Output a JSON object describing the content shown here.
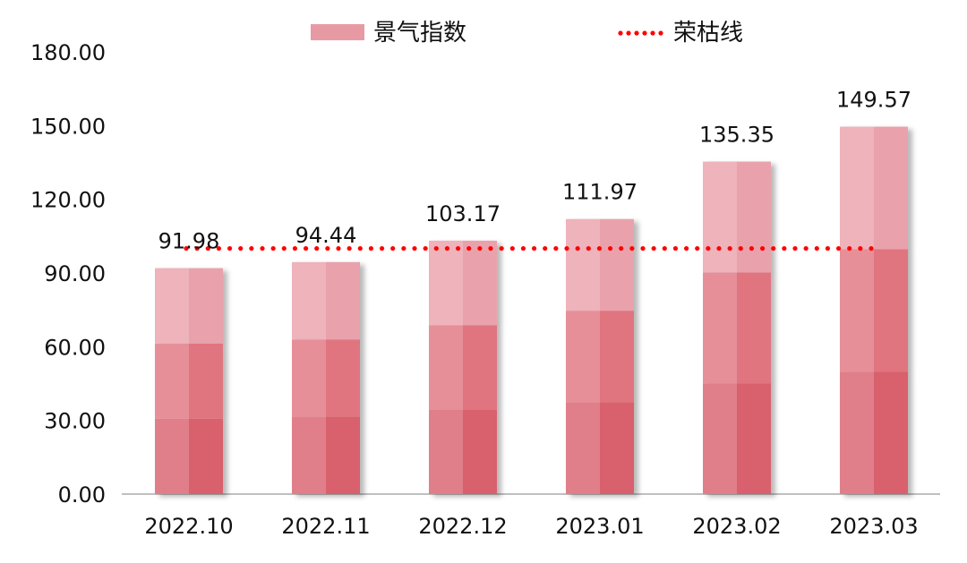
{
  "chart_data": {
    "type": "bar",
    "categories": [
      "2022.10",
      "2022.11",
      "2022.12",
      "2023.01",
      "2023.02",
      "2023.03"
    ],
    "series": [
      {
        "name": "景气指数",
        "type": "bar",
        "values": [
          91.98,
          94.44,
          103.17,
          111.97,
          135.35,
          149.57
        ],
        "labels": [
          "91.98",
          "94.44",
          "103.17",
          "111.97",
          "135.35",
          "149.57"
        ]
      },
      {
        "name": "荣枯线",
        "type": "line",
        "style": "dotted",
        "values": [
          100,
          100,
          100,
          100,
          100,
          100
        ]
      }
    ],
    "yticks": [
      "0.00",
      "30.00",
      "60.00",
      "90.00",
      "120.00",
      "150.00",
      "180.00"
    ],
    "ylim": [
      0,
      180
    ],
    "legend_position": "top-center",
    "grid": false,
    "colors": {
      "bar_top_left": "#eeb3bb",
      "bar_top_right": "#e9a2ab",
      "bar_mid_left": "#e68f99",
      "bar_mid_right": "#e0747f",
      "bar_bot_left": "#e07f89",
      "bar_bot_right": "#d9606d",
      "line": "#ff0000",
      "axis": "#bfbfbf"
    }
  }
}
